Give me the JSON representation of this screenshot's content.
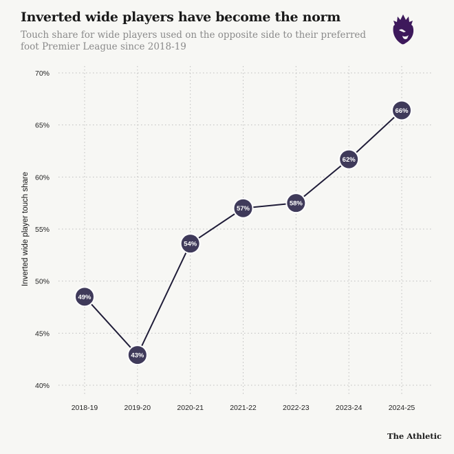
{
  "title": "Inverted wide players have become the norm",
  "subtitle": "Touch share for wide players used on the opposite side to their preferred foot Premier League since 2018-19",
  "footer": "The Athletic",
  "colors": {
    "line": "#1f1c38",
    "marker": "#3f3a5a",
    "marker_text": "#ffffff",
    "grid": "#bdbdbd",
    "logo": "#3d195b"
  },
  "chart_data": {
    "type": "line",
    "title": "Inverted wide players have become the norm",
    "subtitle": "Touch share for wide players used on the opposite side to their preferred foot Premier League since 2018-19",
    "xlabel": "",
    "ylabel": "Inverted wide player touch share",
    "categories": [
      "2018-19",
      "2019-20",
      "2020-21",
      "2021-22",
      "2022-23",
      "2023-24",
      "2024-25"
    ],
    "values": [
      48.5,
      42.9,
      53.6,
      57.0,
      57.5,
      61.7,
      66.4
    ],
    "data_labels": [
      "49%",
      "43%",
      "54%",
      "57%",
      "58%",
      "62%",
      "66%"
    ],
    "ylim": [
      40,
      70
    ],
    "yticks": [
      40,
      45,
      50,
      55,
      60,
      65,
      70
    ],
    "ytick_labels": [
      "40%",
      "45%",
      "50%",
      "55%",
      "60%",
      "65%",
      "70%"
    ],
    "grid": true
  }
}
